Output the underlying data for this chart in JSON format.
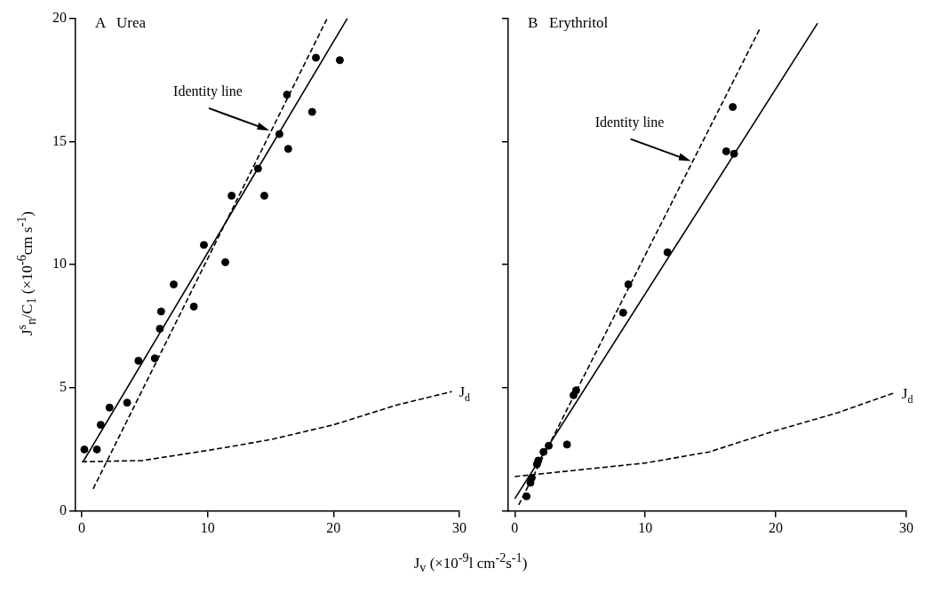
{
  "chart_data": [
    {
      "type": "scatter",
      "title": "A   Urea",
      "ylabel": "J$^{s}$$_{n}$/C$_{1}$ (×10$^{-6}$cm s$^{-1}$)",
      "xlabel": "J$_{v}$ (×10$^{-9}$l cm$^{-2}$s$^{-1}$)",
      "xlim": [
        -0.5,
        30
      ],
      "xticks": [
        0,
        10,
        20,
        30
      ],
      "ylim": [
        0,
        20
      ],
      "yticks": [
        0,
        5,
        10,
        15,
        20
      ],
      "series": [
        {
          "marker": "circle",
          "color": "#000000",
          "x": [
            0.2,
            1.2,
            1.5,
            2.2,
            3.6,
            4.5,
            5.8,
            6.2,
            6.3,
            7.3,
            8.9,
            9.7,
            11.4,
            11.9,
            14.0,
            14.5,
            15.7,
            16.3,
            16.4,
            18.3,
            18.6,
            20.5
          ],
          "values": [
            2.5,
            2.5,
            3.5,
            4.2,
            4.4,
            6.1,
            6.2,
            7.4,
            8.1,
            9.2,
            8.3,
            10.8,
            10.1,
            12.8,
            13.9,
            12.8,
            15.3,
            16.9,
            14.7,
            16.2,
            18.4,
            18.3
          ]
        },
        {
          "type": "line",
          "color": "#000000",
          "line_style": "solid",
          "x": [
            0.1,
            21.1
          ],
          "values": [
            2.0,
            20
          ]
        },
        {
          "type": "line",
          "color": "#000000",
          "line_style": "dashed",
          "x": [
            0.9,
            19.5
          ],
          "values": [
            0.9,
            20
          ]
        },
        {
          "type": "line",
          "name": "J$_{d}$",
          "color": "#000000",
          "line_style": "dashed",
          "x": [
            0,
            4.8,
            10.5,
            15,
            20,
            25,
            29.4
          ],
          "values": [
            2.0,
            2.05,
            2.5,
            2.9,
            3.5,
            4.3,
            4.85
          ]
        }
      ],
      "annotations": [
        {
          "text": "Identity line",
          "x": 14.9,
          "y": 15.45
        }
      ]
    },
    {
      "type": "scatter",
      "title": "B   Erythritol",
      "xlim": [
        -0.5,
        30
      ],
      "xticks": [
        0,
        10,
        20,
        30
      ],
      "ylim": [
        0,
        20
      ],
      "yticks": [
        0,
        5,
        10,
        15,
        20
      ],
      "tick_labels": "x",
      "series": [
        {
          "marker": "circle",
          "color": "#000000",
          "x": [
            0.9,
            1.2,
            1.3,
            1.5,
            1.7,
            1.8,
            2.2,
            2.6,
            4.0,
            4.5,
            4.7,
            8.3,
            8.7,
            11.7,
            16.2,
            16.7,
            16.8
          ],
          "values": [
            0.6,
            1.15,
            1.35,
            null,
            1.9,
            2.05,
            2.4,
            2.65,
            2.7,
            4.7,
            4.9,
            8.05,
            9.2,
            10.5,
            14.6,
            16.4,
            14.5
          ]
        },
        {
          "type": "line",
          "color": "#000000",
          "line_style": "solid",
          "x": [
            0,
            23.2
          ],
          "values": [
            0.5,
            19.8
          ]
        },
        {
          "type": "line",
          "color": "#000000",
          "line_style": "dashed",
          "x": [
            0.3,
            18.8
          ],
          "values": [
            0.25,
            19.6
          ]
        },
        {
          "type": "line",
          "name": "J$_{d}$",
          "color": "#000000",
          "line_style": "dashed",
          "x": [
            0,
            10,
            14.9,
            19.9,
            24.8,
            29.1
          ],
          "values": [
            1.4,
            1.95,
            2.4,
            3.25,
            4.0,
            4.8
          ]
        }
      ],
      "annotations": [
        {
          "text": "Identity line",
          "x": 13.5,
          "y": 14.2
        }
      ]
    }
  ]
}
